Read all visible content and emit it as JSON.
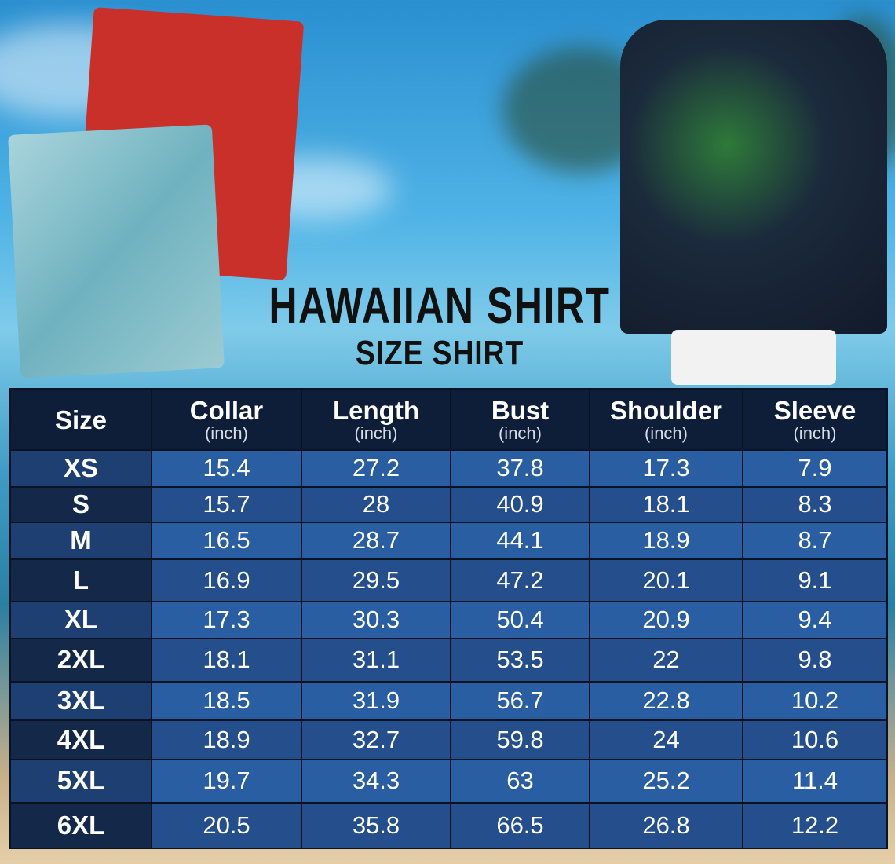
{
  "title": "HAWAIIAN SHIRT",
  "subtitle": "SIZE SHIRT",
  "colors": {
    "header": "#0f1e38",
    "row_light": "#2a5ea3",
    "row_dark": "#244f8c"
  },
  "chart_data": {
    "type": "table",
    "columns": [
      {
        "label": "Size",
        "unit": ""
      },
      {
        "label": "Collar",
        "unit": "(inch)"
      },
      {
        "label": "Length",
        "unit": "(inch)"
      },
      {
        "label": "Bust",
        "unit": "(inch)"
      },
      {
        "label": "Shoulder",
        "unit": "(inch)"
      },
      {
        "label": "Sleeve",
        "unit": "(inch)"
      }
    ],
    "rows": [
      [
        "XS",
        "15.4",
        "27.2",
        "37.8",
        "17.3",
        "7.9"
      ],
      [
        "S",
        "15.7",
        "28",
        "40.9",
        "18.1",
        "8.3"
      ],
      [
        "M",
        "16.5",
        "28.7",
        "44.1",
        "18.9",
        "8.7"
      ],
      [
        "L",
        "16.9",
        "29.5",
        "47.2",
        "20.1",
        "9.1"
      ],
      [
        "XL",
        "17.3",
        "30.3",
        "50.4",
        "20.9",
        "9.4"
      ],
      [
        "2XL",
        "18.1",
        "31.1",
        "53.5",
        "22",
        "9.8"
      ],
      [
        "3XL",
        "18.5",
        "31.9",
        "56.7",
        "22.8",
        "10.2"
      ],
      [
        "4XL",
        "18.9",
        "32.7",
        "59.8",
        "24",
        "10.6"
      ],
      [
        "5XL",
        "19.7",
        "34.3",
        "63",
        "25.2",
        "11.4"
      ],
      [
        "6XL",
        "20.5",
        "35.8",
        "66.5",
        "26.8",
        "12.2"
      ]
    ]
  }
}
